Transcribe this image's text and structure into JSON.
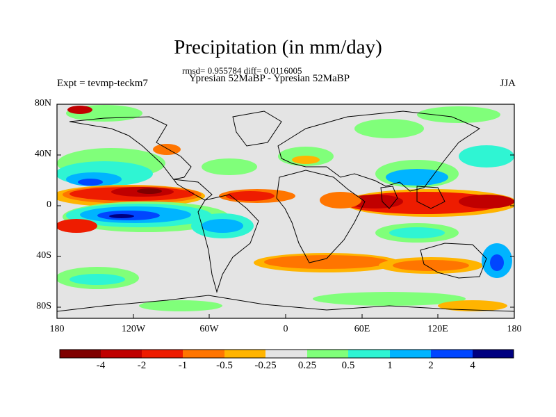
{
  "title": "Precipitation (in mm/day)",
  "stats": "rmsd= 0.955784 diff= 0.0116005",
  "subtitle": "Ypresian  52MaBP - Ypresian  52MaBP",
  "left_label": "Expt = tevmp-teckm7",
  "right_label": "JJA",
  "y_ticks": [
    "80N",
    "40N",
    "0",
    "40S",
    "80S"
  ],
  "x_ticks": [
    "180",
    "120W",
    "60W",
    "0",
    "60E",
    "120E",
    "180"
  ],
  "colorbar": {
    "labels": [
      "-4",
      "-2",
      "-1",
      "-0.5",
      "-0.25",
      "0.25",
      "0.5",
      "1",
      "2",
      "4"
    ],
    "colors": [
      "#7f0000",
      "#c00000",
      "#ee1c00",
      "#ff7500",
      "#ffb400",
      "#e4e4e4",
      "#80ff7a",
      "#2ff5d3",
      "#00b4ff",
      "#0046ff",
      "#000080"
    ]
  },
  "chart_data": {
    "type": "heatmap",
    "title": "Precipitation (in mm/day)",
    "units": "mm/day",
    "season": "JJA",
    "experiment": "tevmp-teckm7",
    "comparison": "Ypresian  52MaBP - Ypresian  52MaBP",
    "rmsd": 0.955784,
    "diff": 0.0116005,
    "lon_range": [
      -180,
      180
    ],
    "lat_range": [
      -90,
      90
    ],
    "contour_levels": [
      -4,
      -2,
      -1,
      -0.5,
      -0.25,
      0.25,
      0.5,
      1,
      2,
      4
    ]
  }
}
